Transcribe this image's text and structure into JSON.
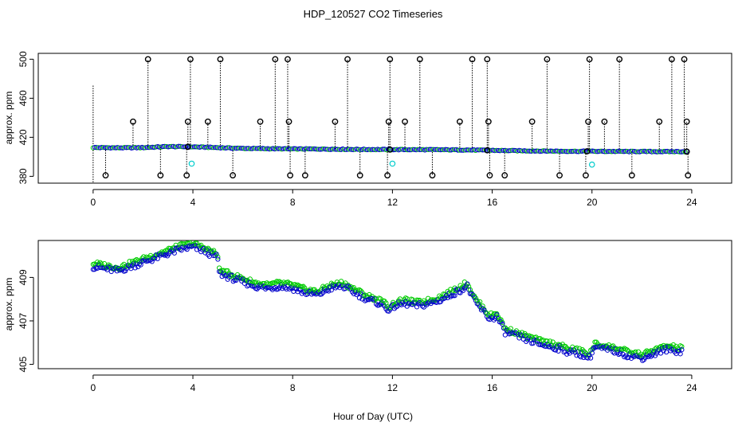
{
  "figure": {
    "title": "HDP_120527  CO2 Timeseries",
    "xlabel": "Hour of Day (UTC)"
  },
  "chart_data": [
    {
      "type": "scatter",
      "panel": "top",
      "ylabel": "approx. ppm",
      "xlim": [
        -2.2,
        25.6
      ],
      "ylim": [
        373,
        506
      ],
      "xticks": [
        0,
        4,
        8,
        12,
        16,
        20,
        24
      ],
      "yticks": [
        380,
        420,
        460,
        500
      ],
      "colors": {
        "main": "#0000cc",
        "alt": "#00cc00",
        "flag": "#000000",
        "cyan": "#00cccc"
      },
      "baseline": [
        [
          0,
          409.5
        ],
        [
          1,
          409.2
        ],
        [
          2,
          409.4
        ],
        [
          3,
          410.5
        ],
        [
          4,
          410.2
        ],
        [
          5,
          409.4
        ],
        [
          6,
          408.6
        ],
        [
          7,
          408.3
        ],
        [
          8,
          408.0
        ],
        [
          9,
          408.0
        ],
        [
          10,
          407.7
        ],
        [
          11,
          407.5
        ],
        [
          12,
          407.4
        ],
        [
          13,
          407.3
        ],
        [
          14,
          407.2
        ],
        [
          15,
          407.0
        ],
        [
          16,
          406.6
        ],
        [
          17,
          406.2
        ],
        [
          18,
          405.9
        ],
        [
          19,
          405.7
        ],
        [
          20,
          405.6
        ],
        [
          21,
          405.5
        ],
        [
          22,
          405.4
        ],
        [
          23,
          405.3
        ],
        [
          23.8,
          405.3
        ]
      ],
      "flag_high": [
        2.2,
        3.9,
        5.1,
        7.3,
        7.8,
        10.2,
        11.9,
        13.1,
        15.2,
        15.8,
        18.2,
        19.9,
        21.1,
        23.2,
        23.7
      ],
      "flag_mid": [
        1.6,
        3.8,
        4.6,
        6.7,
        7.85,
        9.7,
        11.85,
        12.5,
        14.7,
        15.85,
        17.6,
        19.85,
        20.5,
        22.7,
        23.8
      ],
      "flag_low": [
        0.5,
        2.7,
        3.75,
        5.6,
        7.9,
        8.5,
        10.7,
        11.8,
        13.6,
        15.9,
        16.5,
        18.7,
        19.75,
        21.6,
        23.85
      ],
      "cyan_points": [
        [
          3.95,
          393
        ],
        [
          12.0,
          393
        ],
        [
          20.0,
          392
        ]
      ]
    },
    {
      "type": "scatter",
      "panel": "bottom",
      "ylabel": "approx. ppm",
      "xlim": [
        -2.2,
        25.6
      ],
      "ylim": [
        404.8,
        410.7
      ],
      "xticks": [
        0,
        4,
        8,
        12,
        16,
        20,
        24
      ],
      "yticks": [
        405,
        407,
        409
      ],
      "colors": {
        "main": "#0000cc",
        "alt": "#00cc00"
      },
      "series": [
        {
          "values": [
            [
              0,
              409.5
            ],
            [
              0.5,
              409.4
            ],
            [
              1,
              409.3
            ],
            [
              1.5,
              409.5
            ],
            [
              2,
              409.7
            ],
            [
              2.5,
              409.9
            ],
            [
              3,
              410.1
            ],
            [
              3.5,
              410.3
            ],
            [
              4,
              410.4
            ],
            [
              4.5,
              410.2
            ],
            [
              5,
              409.9
            ],
            [
              5.05,
              409.2
            ],
            [
              5.5,
              409.0
            ],
            [
              6,
              408.8
            ],
            [
              6.5,
              408.6
            ],
            [
              7,
              408.5
            ],
            [
              7.5,
              408.6
            ],
            [
              8,
              408.5
            ],
            [
              8.5,
              408.3
            ],
            [
              9,
              408.2
            ],
            [
              9.5,
              408.5
            ],
            [
              10,
              408.6
            ],
            [
              10.5,
              408.3
            ],
            [
              11,
              408.0
            ],
            [
              11.5,
              407.8
            ],
            [
              11.9,
              407.5
            ],
            [
              12.1,
              407.7
            ],
            [
              12.5,
              407.8
            ],
            [
              13,
              407.7
            ],
            [
              13.5,
              407.8
            ],
            [
              14,
              408.0
            ],
            [
              14.5,
              408.3
            ],
            [
              15,
              408.6
            ],
            [
              15.3,
              407.9
            ],
            [
              15.6,
              407.5
            ],
            [
              15.9,
              407.1
            ],
            [
              16.2,
              407.2
            ],
            [
              16.5,
              406.5
            ],
            [
              17,
              406.3
            ],
            [
              17.5,
              406.1
            ],
            [
              18,
              405.9
            ],
            [
              18.5,
              405.8
            ],
            [
              19,
              405.6
            ],
            [
              19.5,
              405.5
            ],
            [
              19.9,
              405.3
            ],
            [
              20.1,
              405.8
            ],
            [
              20.5,
              405.7
            ],
            [
              21,
              405.6
            ],
            [
              21.5,
              405.4
            ],
            [
              22,
              405.3
            ],
            [
              22.5,
              405.5
            ],
            [
              23,
              405.7
            ],
            [
              23.5,
              405.6
            ]
          ]
        }
      ]
    }
  ]
}
